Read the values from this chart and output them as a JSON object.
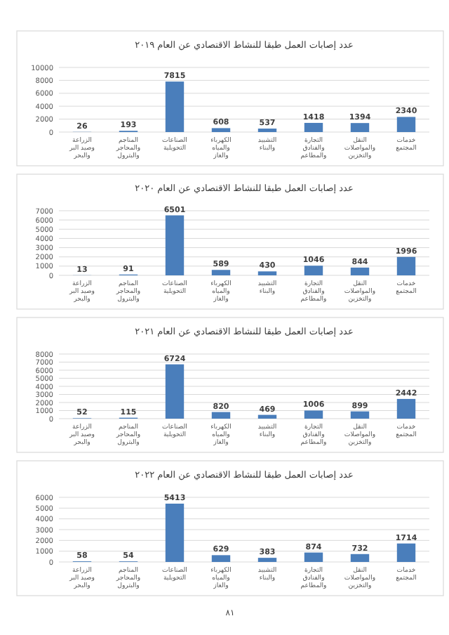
{
  "chart_data": [
    {
      "type": "bar",
      "title": "عدد إصابات العمل طبقا للنشاط الاقتصادي عن العام ٢٠١٩",
      "categories": [
        "الزراعة وصيد البر والبحر",
        "المناجم والمحاجر والبترول",
        "الصناعات التحويلية",
        "الكهرباء والمياه والغاز",
        "التشييد والبناء",
        "التجارة والفنادق والمطاعم",
        "النقل والمواصلات والتخزين",
        "خدمات المجتمع"
      ],
      "values": [
        26,
        193,
        7815,
        608,
        537,
        1418,
        1394,
        2340
      ],
      "color": "#4a7ebb",
      "ylim": [
        0,
        10000
      ],
      "yticks": [
        0,
        2000,
        4000,
        6000,
        8000,
        10000
      ],
      "grid": "y",
      "data_labels": true
    },
    {
      "type": "bar",
      "title": "عدد إصابات العمل طبقا للنشاط الاقتصادي عن العام ٢٠٢٠",
      "categories": [
        "الزراعة وصيد البر والبحر",
        "المناجم والمحاجر والبترول",
        "الصناعات التحويلية",
        "الكهرباء والمياه والغاز",
        "التشييد والبناء",
        "التجارة والفنادق والمطاعم",
        "النقل والمواصلات والتخزين",
        "خدمات المجتمع"
      ],
      "values": [
        13,
        91,
        6501,
        589,
        430,
        1046,
        844,
        1996
      ],
      "color": "#4a7ebb",
      "ylim": [
        0,
        7000
      ],
      "yticks": [
        0,
        1000,
        2000,
        3000,
        4000,
        5000,
        6000,
        7000
      ],
      "grid": "y",
      "data_labels": true
    },
    {
      "type": "bar",
      "title": "عدد إصابات العمل طبقا للنشاط الاقتصادي عن العام ٢٠٢١",
      "categories": [
        "الزراعة وصيد البر والبحر",
        "المناجم والمحاجر والبترول",
        "الصناعات التحويلية",
        "الكهرباء والمياه والغاز",
        "التشييد والبناء",
        "التجارة والفنادق والمطاعم",
        "النقل والمواصلات والتخزين",
        "خدمات المجتمع"
      ],
      "values": [
        52,
        115,
        6724,
        820,
        469,
        1006,
        899,
        2442
      ],
      "color": "#4a7ebb",
      "ylim": [
        0,
        8000
      ],
      "yticks": [
        0,
        1000,
        2000,
        3000,
        4000,
        5000,
        6000,
        7000,
        8000
      ],
      "grid": "y",
      "data_labels": true
    },
    {
      "type": "bar",
      "title": "عدد إصابات العمل طبقا للنشاط الاقتصادي عن العام ٢٠٢٢",
      "categories": [
        "الزراعة وصيد البر والبحر",
        "المناجم والمحاجر والبترول",
        "الصناعات التحويلية",
        "الكهرباء والمياه والغاز",
        "التشييد والبناء",
        "التجارة والفنادق والمطاعم",
        "النقل والمواصلات والتخزين",
        "خدمات المجتمع"
      ],
      "values": [
        58,
        54,
        5413,
        629,
        383,
        874,
        732,
        1714
      ],
      "color": "#4a7ebb",
      "ylim": [
        0,
        6000
      ],
      "yticks": [
        0,
        1000,
        2000,
        3000,
        4000,
        5000,
        6000
      ],
      "grid": "y",
      "data_labels": true,
      "annotations": [
        "٨١"
      ]
    }
  ]
}
